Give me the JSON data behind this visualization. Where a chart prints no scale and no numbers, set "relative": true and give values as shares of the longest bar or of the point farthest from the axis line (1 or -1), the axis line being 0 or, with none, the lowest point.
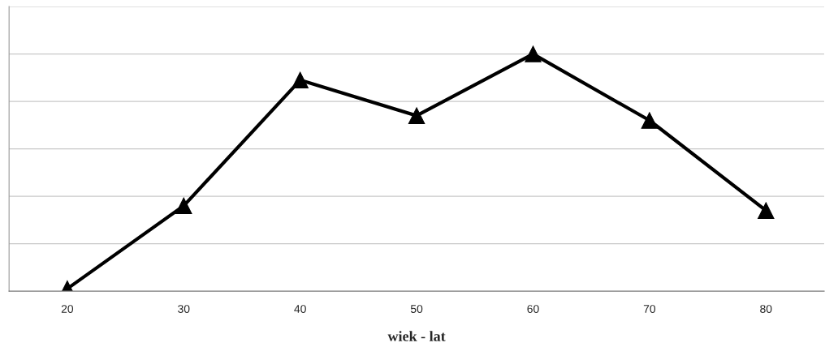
{
  "chart_data": {
    "type": "line",
    "relative": true,
    "xlabel": "wiek - lat",
    "categories": [
      "20",
      "30",
      "40",
      "50",
      "60",
      "70",
      "80"
    ],
    "series": [
      {
        "color": "#000000",
        "values": [
          0.01,
          0.36,
          0.89,
          0.74,
          1,
          0.72,
          0.34
        ]
      }
    ],
    "marker": "triangle",
    "line_style": "solid",
    "grid": "y",
    "legend": false
  }
}
